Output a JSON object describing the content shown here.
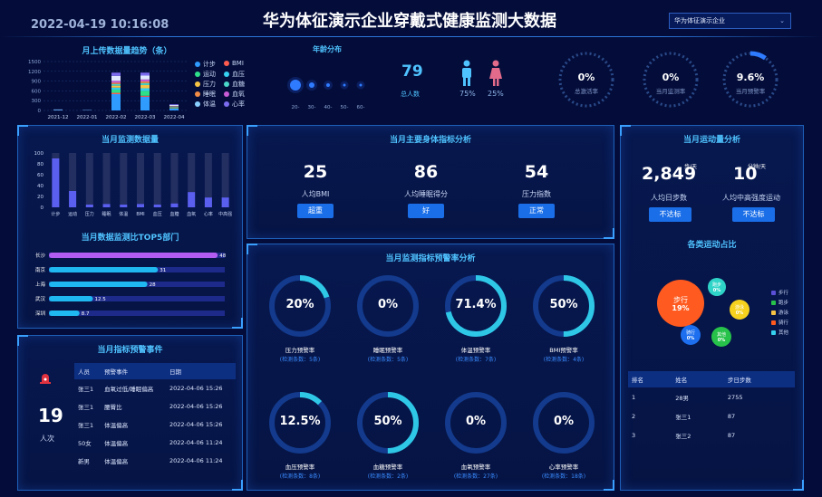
{
  "header": {
    "datetime": "2022-04-19 10:16:08",
    "title": "华为体征演示企业穿戴式健康监测大数据",
    "company_select": "华为体征演示企业"
  },
  "upload_trend": {
    "title": "月上传数据量趋势（条）",
    "ylim": [
      0,
      1500
    ],
    "yticks": [
      "1500",
      "1200",
      "900",
      "600",
      "300",
      "0"
    ],
    "categories": [
      "2021-12",
      "2022-01",
      "2022-02",
      "2022-03",
      "2022-04"
    ],
    "legend": [
      {
        "label": "计步",
        "color": "#2f9bff"
      },
      {
        "label": "BMI",
        "color": "#ff5b4f"
      },
      {
        "label": "运动",
        "color": "#2fe08b"
      },
      {
        "label": "血压",
        "color": "#36d0f0"
      },
      {
        "label": "压力",
        "color": "#f6c344"
      },
      {
        "label": "血糖",
        "color": "#4ad6c8"
      },
      {
        "label": "睡眠",
        "color": "#f28b46"
      },
      {
        "label": "血氧",
        "color": "#c85bd6"
      },
      {
        "label": "体温",
        "color": "#8ad0ff"
      },
      {
        "label": "心率",
        "color": "#7c6cf0"
      }
    ]
  },
  "age_dist": {
    "title": "年龄分布",
    "ticks": [
      "20-",
      "30-",
      "40-",
      "50-",
      "60-"
    ],
    "total": "79",
    "total_label": "总人数",
    "male_pct": "75%",
    "female_pct": "25%"
  },
  "gauges": [
    {
      "value": "0%",
      "label": "总激活率",
      "fraction": 0
    },
    {
      "value": "0%",
      "label": "当月监测率",
      "fraction": 0
    },
    {
      "value": "9.6%",
      "label": "当月预警率",
      "fraction": 0.096
    }
  ],
  "monthly_volume": {
    "title": "当月监测数据量",
    "yticks": [
      "100",
      "80",
      "60",
      "40",
      "20",
      "0"
    ],
    "categories": [
      "计步",
      "运动",
      "压力",
      "睡眠",
      "体温",
      "BMI",
      "血压",
      "血糖",
      "血氧",
      "心率",
      "中高强"
    ],
    "values": [
      90,
      30,
      5,
      6,
      5,
      6,
      5,
      7,
      28,
      18,
      18
    ]
  },
  "top5": {
    "title": "当月数据监测比TOP5部门",
    "rows": [
      {
        "name": "长沙",
        "value": 48
      },
      {
        "name": "南京",
        "value": 31
      },
      {
        "name": "上海",
        "value": 28
      },
      {
        "name": "武汉",
        "value": 12.5
      },
      {
        "name": "深圳",
        "value": 8.7
      }
    ],
    "max": 48
  },
  "events": {
    "title": "当月指标预警事件",
    "count": "19",
    "unit": "人次",
    "headers": [
      "人员",
      "预警事件",
      "日期"
    ],
    "rows": [
      [
        "张三1",
        "血氧过低/睡眠偏高",
        "2022-04-06 15:26"
      ],
      [
        "张三1",
        "腰臀比",
        "2022-04-06 15:26"
      ],
      [
        "张三1",
        "体温偏高",
        "2022-04-06 15:26"
      ],
      [
        "50女",
        "体温偏高",
        "2022-04-06 11:24"
      ],
      [
        "新男",
        "体温偏高",
        "2022-04-06 11:24"
      ]
    ]
  },
  "body_indicators": {
    "title": "当月主要身体指标分析",
    "items": [
      {
        "value": "25",
        "label": "人均BMI",
        "status": "超重"
      },
      {
        "value": "86",
        "label": "人均睡眠得分",
        "status": "好"
      },
      {
        "value": "54",
        "label": "压力指数",
        "status": "正常"
      }
    ]
  },
  "warning_rates": {
    "title": "当月监测指标预警率分析",
    "items": [
      {
        "value": "20%",
        "fraction": 0.2,
        "label": "压力预警率",
        "sub": "(检测条数：5条)"
      },
      {
        "value": "0%",
        "fraction": 0,
        "label": "睡眠预警率",
        "sub": "(检测条数：5条)"
      },
      {
        "value": "71.4%",
        "fraction": 0.714,
        "label": "体温预警率",
        "sub": "(检测条数：7条)"
      },
      {
        "value": "50%",
        "fraction": 0.5,
        "label": "BMI预警率",
        "sub": "(检测条数：4条)"
      },
      {
        "value": "12.5%",
        "fraction": 0.125,
        "label": "血压预警率",
        "sub": "(检测条数：8条)"
      },
      {
        "value": "50%",
        "fraction": 0.5,
        "label": "血糖预警率",
        "sub": "(检测条数：2条)"
      },
      {
        "value": "0%",
        "fraction": 0,
        "label": "血氧预警率",
        "sub": "(检测条数：27条)"
      },
      {
        "value": "0%",
        "fraction": 0,
        "label": "心率预警率",
        "sub": "(检测条数：18条)"
      }
    ]
  },
  "exercise": {
    "title": "当月运动量分析",
    "steps_value": "2,849",
    "steps_unit": "步/天",
    "steps_label": "人均日步数",
    "steps_status": "不达标",
    "intensity_value": "10",
    "intensity_unit": "分钟/天",
    "intensity_label": "人均中高强度运动",
    "intensity_status": "不达标",
    "share_title": "各类运动占比",
    "bubbles": [
      {
        "label": "步行",
        "value": "19%",
        "color": "#ff5a1f"
      },
      {
        "label": "跑步",
        "value": "0%",
        "color": "#2fd4c8"
      },
      {
        "label": "骑行",
        "value": "0%",
        "color": "#1d6ff0"
      },
      {
        "label": "游泳",
        "value": "0%",
        "color": "#f6d21f"
      },
      {
        "label": "其他",
        "value": "0%",
        "color": "#27c24a"
      }
    ],
    "legend": [
      {
        "label": "步行",
        "color": "#5a4fd6"
      },
      {
        "label": "跑步",
        "color": "#27c24a"
      },
      {
        "label": "游泳",
        "color": "#f6c344"
      },
      {
        "label": "骑行",
        "color": "#ff5a1f"
      },
      {
        "label": "其他",
        "color": "#36d0f0"
      }
    ],
    "rank_headers": [
      "排名",
      "姓名",
      "步日步数"
    ],
    "rank_rows": [
      [
        "1",
        "28男",
        "2755"
      ],
      [
        "2",
        "张三1",
        "87"
      ],
      [
        "3",
        "张三2",
        "87"
      ]
    ]
  }
}
